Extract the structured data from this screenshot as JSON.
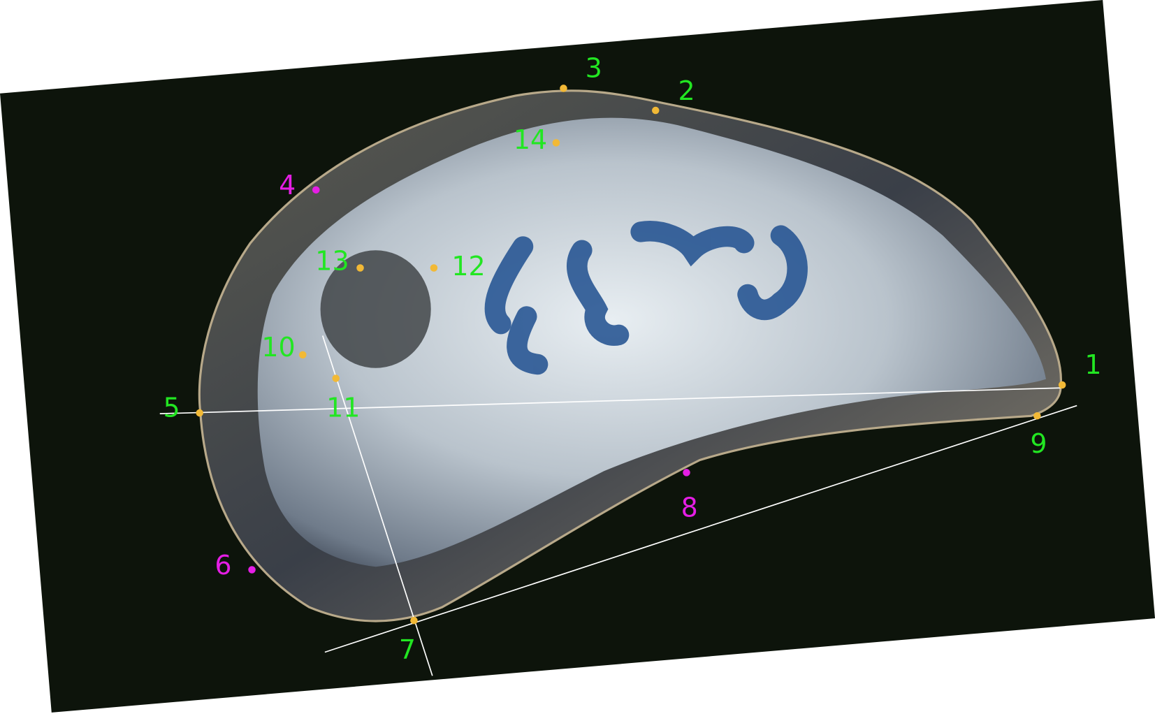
{
  "landmarks": [
    {
      "label": "1"
    },
    {
      "label": "2"
    },
    {
      "label": "3"
    },
    {
      "label": "4"
    },
    {
      "label": "5"
    },
    {
      "label": "6"
    },
    {
      "label": "7"
    },
    {
      "label": "8"
    },
    {
      "label": "9"
    },
    {
      "label": "10"
    },
    {
      "label": "11"
    },
    {
      "label": "12"
    },
    {
      "label": "13"
    },
    {
      "label": "14"
    }
  ]
}
